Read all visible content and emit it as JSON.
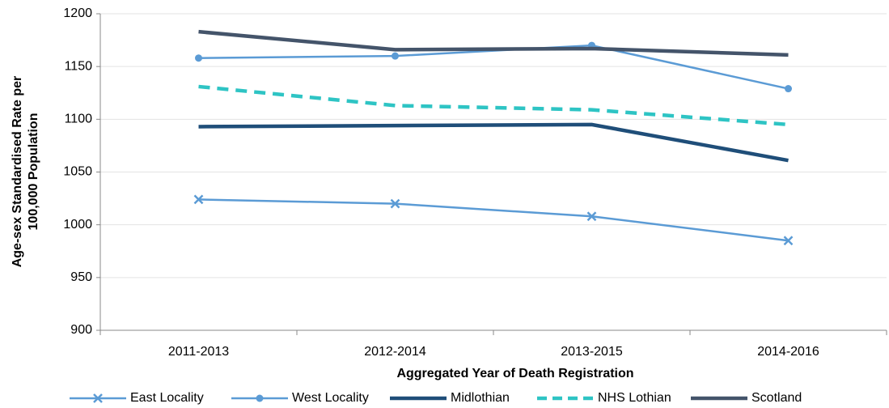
{
  "chart_data": {
    "type": "line",
    "x_label": "Aggregated Year of Death Registration",
    "y_label": [
      "Age-sex  Standardised  Rate per",
      "100,000 Population"
    ],
    "categories": [
      "2011-2013",
      "2012-2014",
      "2013-2015",
      "2014-2016"
    ],
    "series": [
      {
        "name": "East Locality",
        "color": "#5b9bd5",
        "marker": "x",
        "dashed": false,
        "values": [
          1024,
          1020,
          1008,
          985
        ]
      },
      {
        "name": "West Locality",
        "color": "#5b9bd5",
        "marker": "circle",
        "dashed": false,
        "values": [
          1158,
          1160,
          1170,
          1129
        ]
      },
      {
        "name": "Midlothian",
        "color": "#1f4e79",
        "marker": null,
        "dashed": false,
        "values": [
          1093,
          1094,
          1095,
          1061
        ]
      },
      {
        "name": "NHS Lothian",
        "color": "#2ec4c4",
        "marker": null,
        "dashed": true,
        "values": [
          1131,
          1113,
          1109,
          1095
        ]
      },
      {
        "name": "Scotland",
        "color": "#44546a",
        "marker": null,
        "dashed": false,
        "values": [
          1183,
          1166,
          1167,
          1161
        ]
      }
    ],
    "ylim": [
      900,
      1200
    ],
    "yticks": [
      900,
      950,
      1000,
      1050,
      1100,
      1150,
      1200
    ],
    "grid": true,
    "legend": "bottom"
  }
}
